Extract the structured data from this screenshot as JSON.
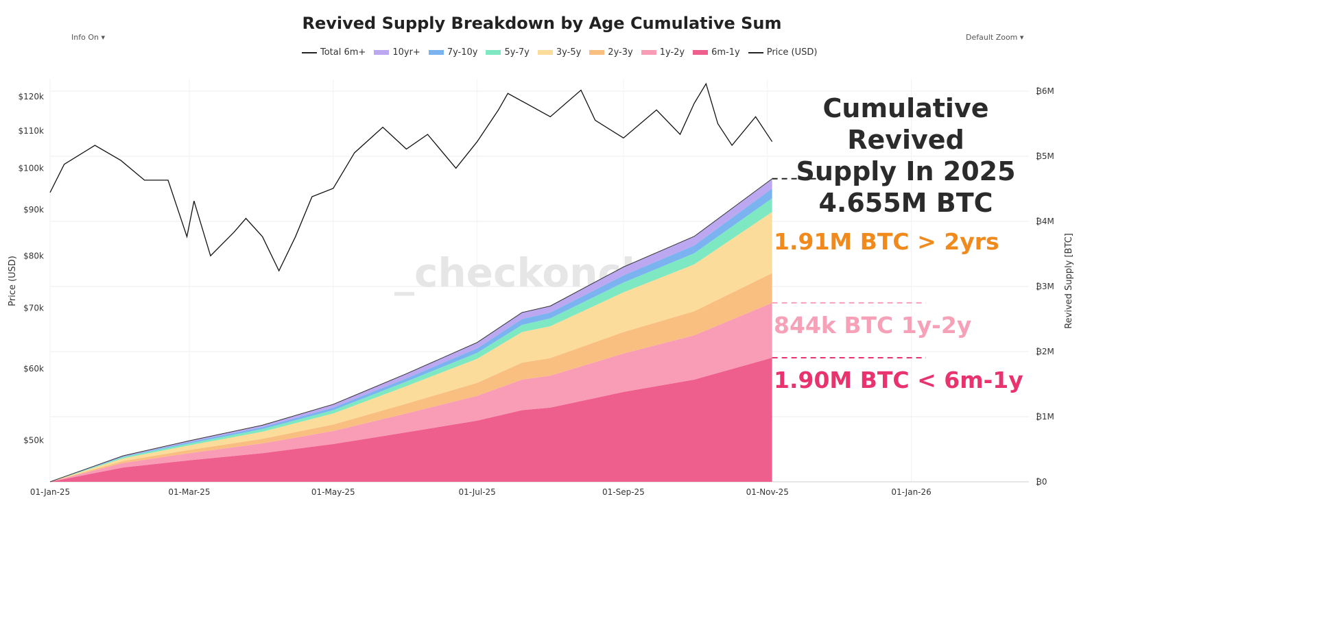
{
  "controls": {
    "info": "Info On ▾",
    "zoom": "Default Zoom ▾"
  },
  "chart_data": {
    "type": "area",
    "title": "Revived Supply Breakdown by Age Cumulative Sum",
    "ylabel_left": "Price (USD)",
    "ylabel_right": "Revived Supply [BTC]",
    "left_scale": "log",
    "left_ticks": [
      "$50k",
      "$60k",
      "$70k",
      "$80k",
      "$90k",
      "$100k",
      "$110k",
      "$120k"
    ],
    "left_tick_values": [
      50000,
      60000,
      70000,
      80000,
      90000,
      100000,
      110000,
      120000
    ],
    "right_ticks": [
      "₿0",
      "₿1M",
      "₿2M",
      "₿3M",
      "₿4M",
      "₿5M",
      "₿6M"
    ],
    "right_tick_values": [
      0,
      1,
      2,
      3,
      4,
      5,
      6
    ],
    "x_ticks": [
      "01-Jan-25",
      "01-Mar-25",
      "01-May-25",
      "01-Jul-25",
      "01-Sep-25",
      "01-Nov-25",
      "01-Jan-26"
    ],
    "x_tick_dates": [
      "2025-01-01",
      "2025-03-01",
      "2025-05-01",
      "2025-07-01",
      "2025-09-01",
      "2025-11-01",
      "2026-01-01"
    ],
    "xlim": [
      "2025-01-01",
      "2026-02-28"
    ],
    "legend": [
      "Total 6m+",
      "10yr+",
      "7y-10y",
      "5y-7y",
      "3y-5y",
      "2y-3y",
      "1y-2y",
      "6m-1y",
      "Price (USD)"
    ],
    "legend_placement": "top",
    "grid": true,
    "dates": [
      "2025-01-01",
      "2025-02-01",
      "2025-03-01",
      "2025-04-01",
      "2025-05-01",
      "2025-06-01",
      "2025-07-01",
      "2025-07-20",
      "2025-08-01",
      "2025-09-01",
      "2025-10-01",
      "2025-11-03"
    ],
    "series": [
      {
        "name": "6m-1y",
        "color": "#ee5f8d",
        "values": [
          0,
          0.22,
          0.33,
          0.44,
          0.58,
          0.76,
          0.94,
          1.1,
          1.14,
          1.38,
          1.57,
          1.905
        ]
      },
      {
        "name": "1y-2y",
        "color": "#f99cb5",
        "values": [
          0,
          0.07,
          0.11,
          0.15,
          0.2,
          0.29,
          0.38,
          0.47,
          0.49,
          0.59,
          0.68,
          0.844
        ]
      },
      {
        "name": "2y-3y",
        "color": "#f9bf80",
        "values": [
          0,
          0.03,
          0.05,
          0.07,
          0.1,
          0.15,
          0.2,
          0.26,
          0.27,
          0.33,
          0.37,
          0.456
        ]
      },
      {
        "name": "3y-5y",
        "color": "#fbdc9a",
        "values": [
          0,
          0.04,
          0.07,
          0.11,
          0.17,
          0.27,
          0.37,
          0.47,
          0.49,
          0.61,
          0.72,
          0.94
        ]
      },
      {
        "name": "5y-7y",
        "color": "#7de8c2",
        "values": [
          0,
          0.02,
          0.03,
          0.04,
          0.05,
          0.07,
          0.09,
          0.11,
          0.12,
          0.15,
          0.17,
          0.21
        ]
      },
      {
        "name": "7y-10y",
        "color": "#7ab3ef",
        "values": [
          0,
          0.01,
          0.02,
          0.03,
          0.04,
          0.05,
          0.07,
          0.09,
          0.09,
          0.11,
          0.12,
          0.15
        ]
      },
      {
        "name": "10yr+",
        "color": "#bba8f0",
        "values": [
          0,
          0.01,
          0.02,
          0.03,
          0.05,
          0.07,
          0.09,
          0.1,
          0.1,
          0.13,
          0.14,
          0.15
        ]
      }
    ],
    "price": {
      "name": "Price (USD)",
      "dates": [
        "2025-01-01",
        "2025-01-07",
        "2025-01-20",
        "2025-01-31",
        "2025-02-10",
        "2025-02-20",
        "2025-02-28",
        "2025-03-03",
        "2025-03-10",
        "2025-03-20",
        "2025-03-25",
        "2025-04-01",
        "2025-04-08",
        "2025-04-15",
        "2025-04-22",
        "2025-05-01",
        "2025-05-10",
        "2025-05-22",
        "2025-06-01",
        "2025-06-10",
        "2025-06-22",
        "2025-07-01",
        "2025-07-10",
        "2025-07-14",
        "2025-08-01",
        "2025-08-14",
        "2025-08-20",
        "2025-09-01",
        "2025-09-15",
        "2025-09-25",
        "2025-10-01",
        "2025-10-06",
        "2025-10-11",
        "2025-10-17",
        "2025-10-27",
        "2025-11-03"
      ],
      "values": [
        94000,
        101000,
        106000,
        102000,
        97000,
        97000,
        84000,
        92000,
        80000,
        85000,
        88000,
        84000,
        77000,
        84000,
        93000,
        95000,
        104000,
        111000,
        105000,
        109000,
        100000,
        107000,
        116000,
        121000,
        114000,
        122000,
        113000,
        108000,
        116000,
        109000,
        118000,
        124000,
        112000,
        106000,
        114000,
        107000
      ]
    }
  },
  "annotations": {
    "total_line1": "Cumulative Revived",
    "total_line2": "Supply In 2025",
    "total_value": "4.655M BTC",
    "over_2yrs": "1.91M BTC > 2yrs",
    "y1_2": "844k BTC 1y-2y",
    "m6_1y": "1.90M BTC < 6m-1y",
    "colors": {
      "total": "#2b2b2b",
      "over_2yrs": "#f08a1c",
      "y1_2": "#f7a1b9",
      "m6_1y": "#e8336f"
    }
  },
  "watermark": "_checkonchain"
}
